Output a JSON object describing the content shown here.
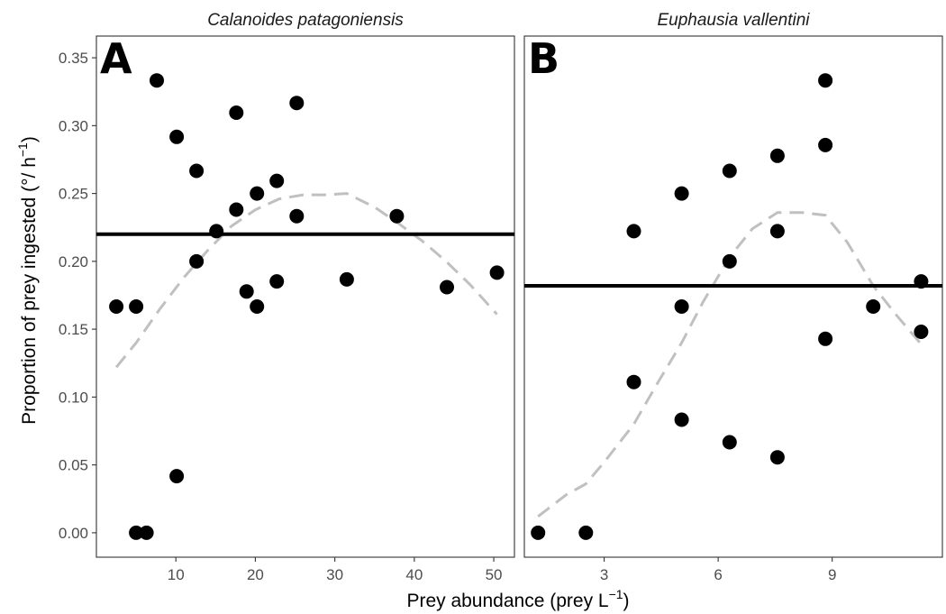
{
  "chart_data": {
    "type": "scatter",
    "ylabel_main": "Proportion of prey ingested (",
    "ylabel_unit": "°/ h",
    "ylabel_exp": "−1",
    "ylabel_close": ")",
    "xlabel_main": "Prey abundance (prey L",
    "xlabel_exp": "−1",
    "xlabel_close": ")",
    "ylim": [
      -0.018,
      0.366
    ],
    "y_ticks": [
      0.0,
      0.05,
      0.1,
      0.15,
      0.2,
      0.25,
      0.3,
      0.35
    ],
    "y_tick_labels": [
      "0.00",
      "0.05",
      "0.10",
      "0.15",
      "0.20",
      "0.25",
      "0.30",
      "0.35"
    ],
    "panels": [
      {
        "tag": "A",
        "title": "Calanoides patagoniensis",
        "xlim": [
          0.0,
          52.6
        ],
        "x_ticks": [
          10,
          20,
          30,
          40,
          50
        ],
        "x_tick_labels": [
          "10",
          "20",
          "30",
          "40",
          "50"
        ],
        "points": [
          [
            2.5,
            0.1667
          ],
          [
            5.0,
            0.1667
          ],
          [
            5.0,
            0.0
          ],
          [
            6.3,
            0.0
          ],
          [
            7.6,
            0.3333
          ],
          [
            10.1,
            0.2917
          ],
          [
            10.1,
            0.0417
          ],
          [
            12.6,
            0.2667
          ],
          [
            12.6,
            0.2
          ],
          [
            15.1,
            0.2222
          ],
          [
            17.6,
            0.3095
          ],
          [
            17.6,
            0.2381
          ],
          [
            18.9,
            0.1778
          ],
          [
            20.2,
            0.25
          ],
          [
            20.2,
            0.1667
          ],
          [
            22.7,
            0.2593
          ],
          [
            22.7,
            0.1852
          ],
          [
            25.2,
            0.3167
          ],
          [
            25.2,
            0.2333
          ],
          [
            31.5,
            0.1867
          ],
          [
            37.8,
            0.2333
          ],
          [
            44.1,
            0.181
          ],
          [
            50.4,
            0.1917
          ]
        ],
        "mean_line": 0.22,
        "smooth": [
          [
            2.5,
            0.122
          ],
          [
            5,
            0.14
          ],
          [
            8,
            0.165
          ],
          [
            11,
            0.188
          ],
          [
            14,
            0.208
          ],
          [
            17,
            0.226
          ],
          [
            20,
            0.238
          ],
          [
            23,
            0.246
          ],
          [
            26,
            0.249
          ],
          [
            29,
            0.249
          ],
          [
            31.5,
            0.25
          ],
          [
            35,
            0.24
          ],
          [
            38,
            0.228
          ],
          [
            41,
            0.215
          ],
          [
            44,
            0.2
          ],
          [
            47,
            0.183
          ],
          [
            50.4,
            0.161
          ]
        ]
      },
      {
        "tag": "B",
        "title": "Euphausia vallentini",
        "xlim": [
          0.9,
          11.9
        ],
        "x_ticks": [
          3,
          6,
          9
        ],
        "x_tick_labels": [
          "3",
          "6",
          "9"
        ],
        "points": [
          [
            1.26,
            0.0
          ],
          [
            2.52,
            0.0
          ],
          [
            3.78,
            0.2222
          ],
          [
            3.78,
            0.1111
          ],
          [
            5.04,
            0.25
          ],
          [
            5.04,
            0.1667
          ],
          [
            5.04,
            0.0833
          ],
          [
            6.3,
            0.2667
          ],
          [
            6.3,
            0.2
          ],
          [
            6.3,
            0.0667
          ],
          [
            7.56,
            0.2778
          ],
          [
            7.56,
            0.2222
          ],
          [
            7.56,
            0.0556
          ],
          [
            8.82,
            0.3333
          ],
          [
            8.82,
            0.2857
          ],
          [
            8.82,
            0.1429
          ],
          [
            10.08,
            0.1667
          ],
          [
            11.34,
            0.1852
          ],
          [
            11.34,
            0.1481
          ]
        ],
        "mean_line": 0.182,
        "smooth": [
          [
            1.26,
            0.012
          ],
          [
            2.0,
            0.028
          ],
          [
            2.52,
            0.036
          ],
          [
            3.0,
            0.052
          ],
          [
            3.78,
            0.08
          ],
          [
            4.4,
            0.11
          ],
          [
            5.04,
            0.14
          ],
          [
            5.6,
            0.17
          ],
          [
            6.3,
            0.203
          ],
          [
            6.9,
            0.224
          ],
          [
            7.56,
            0.236
          ],
          [
            8.2,
            0.236
          ],
          [
            8.82,
            0.234
          ],
          [
            9.4,
            0.214
          ],
          [
            10.08,
            0.182
          ],
          [
            10.7,
            0.16
          ],
          [
            11.34,
            0.139
          ]
        ]
      }
    ],
    "point_color": "#000000",
    "mean_line_color": "#000000",
    "smooth_color": "#c0c0c0"
  }
}
